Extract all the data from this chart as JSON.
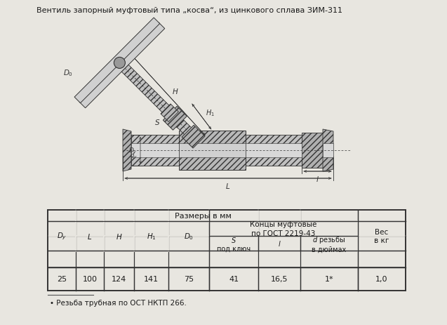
{
  "title": "Вентиль запорный муфтовый типа „косва“, из цинкового сплава ЗИМ-311",
  "bg_color": "#e8e6e0",
  "table_bg": "#e8e6e0",
  "line_color": "#333333",
  "text_color": "#1a1a1a",
  "data_row": [
    "25",
    "100",
    "124",
    "141",
    "75",
    "41",
    "16,5",
    "1*",
    "1,0"
  ],
  "footnote": "• Резьба трубная по ОСТ НКТП 266."
}
